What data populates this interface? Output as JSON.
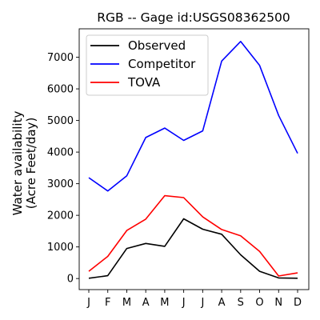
{
  "chart_data": {
    "type": "line",
    "title": "RGB -- Gage id:USGS08362500",
    "xlabel": "",
    "ylabel": [
      "Water availability",
      "(Acre Feet/day)"
    ],
    "categories": [
      "J",
      "F",
      "M",
      "A",
      "M",
      "J",
      "J",
      "A",
      "S",
      "O",
      "N",
      "D"
    ],
    "ylim": [
      -350,
      7900
    ],
    "yticks": [
      0,
      1000,
      2000,
      3000,
      4000,
      5000,
      6000,
      7000
    ],
    "grid": false,
    "legend_position": "top-left",
    "series": [
      {
        "name": "Observed",
        "color": "#000000",
        "values": [
          10,
          90,
          950,
          1110,
          1020,
          1890,
          1560,
          1400,
          750,
          230,
          20,
          10
        ]
      },
      {
        "name": "Competitor",
        "color": "#0000ff",
        "values": [
          3190,
          2770,
          3250,
          4460,
          4760,
          4370,
          4670,
          6880,
          7500,
          6740,
          5160,
          3960
        ]
      },
      {
        "name": "TOVA",
        "color": "#ff0000",
        "values": [
          230,
          700,
          1520,
          1880,
          2620,
          2560,
          1950,
          1550,
          1350,
          860,
          80,
          180
        ]
      }
    ]
  }
}
